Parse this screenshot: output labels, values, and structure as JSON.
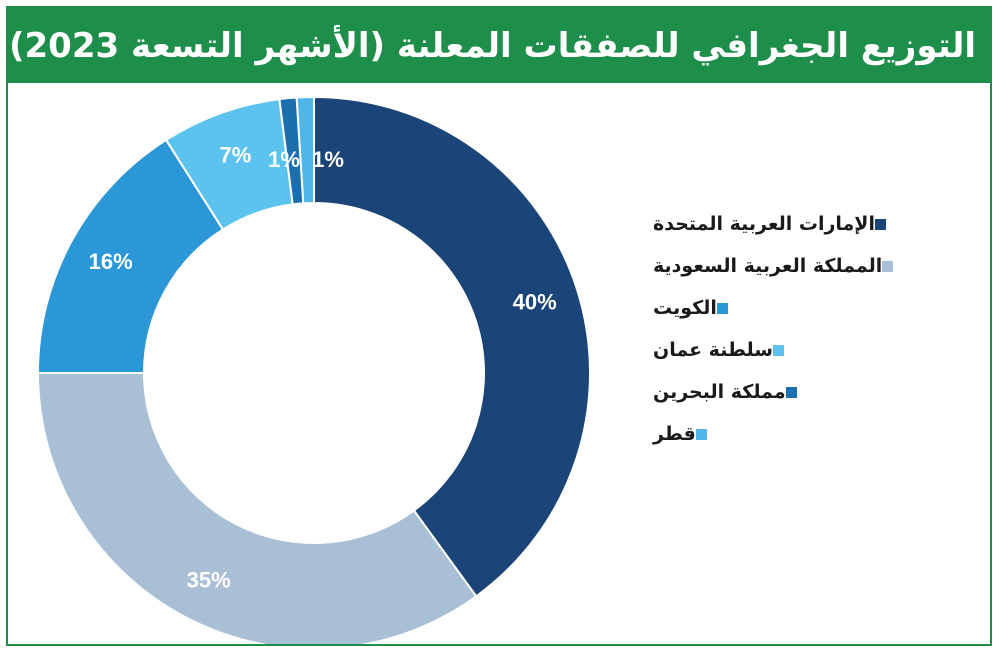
{
  "title": "التوزيع الجغرافي للصفقات المعلنة (الأشهر التسعة 2023)",
  "colors": {
    "title_bar": "#1e8f4a",
    "frame": "#1e8f4a"
  },
  "chart_data": {
    "type": "pie",
    "subtype": "donut",
    "title": "التوزيع الجغرافي للصفقات المعلنة (الأشهر التسعة 2023)",
    "legend_placement": "right",
    "unit": "%",
    "categories": [
      "الإمارات العربية المتحدة",
      "المملكة العربية السعودية",
      "الكويت",
      "سلطنة عمان",
      "مملكة البحرين",
      "قطر"
    ],
    "values": [
      40,
      35,
      16,
      7,
      1,
      1
    ],
    "labels": [
      "40%",
      "35%",
      "16%",
      "7%",
      "1%",
      "1%"
    ],
    "colors": [
      "#1b4478",
      "#a8bfd6",
      "#2b97d6",
      "#5cc3ee",
      "#1c6fae",
      "#4fb6e8"
    ]
  }
}
